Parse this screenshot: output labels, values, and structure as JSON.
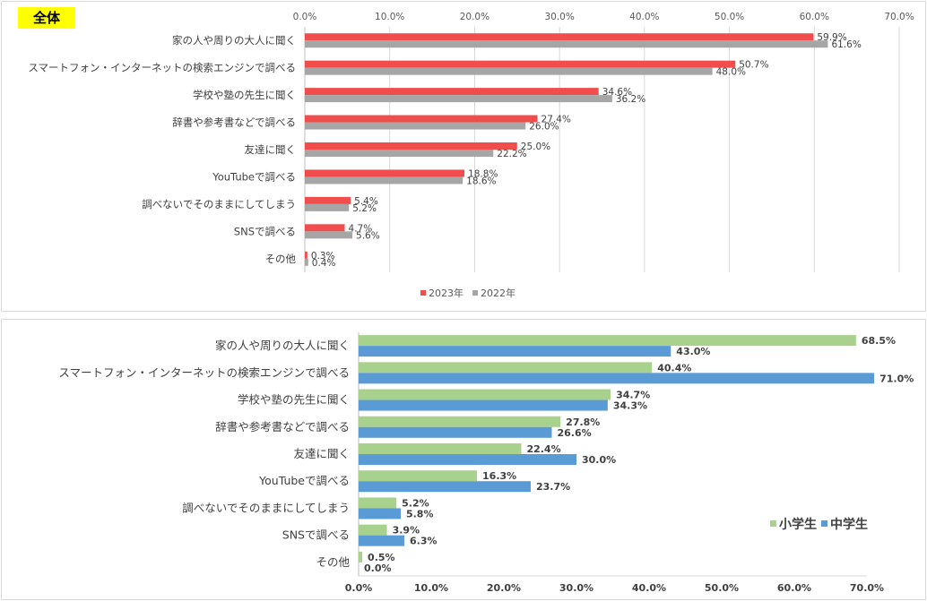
{
  "chart_data": [
    {
      "type": "bar",
      "orientation": "horizontal",
      "title": "",
      "badge": "全体",
      "categories": [
        "家の人や周りの大人に聞く",
        "スマートフォン・インターネットの検索エンジンで調べる",
        "学校や塾の先生に聞く",
        "辞書や参考書などで調べる",
        "友達に聞く",
        "YouTubeで調べる",
        "調べないでそのままにしてしまう",
        "SNSで調べる",
        "その他"
      ],
      "series": [
        {
          "name": "2023年",
          "color": "#f14d4d",
          "values": [
            59.9,
            50.7,
            34.6,
            27.4,
            25.0,
            18.8,
            5.4,
            4.7,
            0.3
          ],
          "labels": [
            "59.9%",
            "50.7%",
            "34.6%",
            "27.4%",
            "25.0%",
            "18.8%",
            "5.4%",
            "4.7%",
            "0.3%"
          ]
        },
        {
          "name": "2022年",
          "color": "#a6a6a6",
          "values": [
            61.6,
            48.0,
            36.2,
            26.0,
            22.2,
            18.6,
            5.2,
            5.6,
            0.4
          ],
          "labels": [
            "61.6%",
            "48.0%",
            "36.2%",
            "26.0%",
            "22.2%",
            "18.6%",
            "5.2%",
            "5.6%",
            "0.4%"
          ]
        }
      ],
      "ticks": [
        "0.0%",
        "10.0%",
        "20.0%",
        "30.0%",
        "40.0%",
        "50.0%",
        "60.0%",
        "70.0%"
      ],
      "xlim": [
        0,
        70
      ],
      "axis_position": "top",
      "grid": true,
      "legend_position": "bottom"
    },
    {
      "type": "bar",
      "orientation": "horizontal",
      "title": "",
      "categories": [
        "家の人や周りの大人に聞く",
        "スマートフォン・インターネットの検索エンジンで調べる",
        "学校や塾の先生に聞く",
        "辞書や参考書などで調べる",
        "友達に聞く",
        "YouTubeで調べる",
        "調べないでそのままにしてしまう",
        "SNSで調べる",
        "その他"
      ],
      "series": [
        {
          "name": "小学生",
          "color": "#a9d18e",
          "values": [
            68.5,
            40.4,
            34.7,
            27.8,
            22.4,
            16.3,
            5.2,
            3.9,
            0.5
          ],
          "labels": [
            "68.5%",
            "40.4%",
            "34.7%",
            "27.8%",
            "22.4%",
            "16.3%",
            "5.2%",
            "3.9%",
            "0.5%"
          ]
        },
        {
          "name": "中学生",
          "color": "#5b9bd5",
          "values": [
            43.0,
            71.0,
            34.3,
            26.6,
            30.0,
            23.7,
            5.8,
            6.3,
            0.0
          ],
          "labels": [
            "43.0%",
            "71.0%",
            "34.3%",
            "26.6%",
            "30.0%",
            "23.7%",
            "5.8%",
            "6.3%",
            "0.0%"
          ]
        }
      ],
      "ticks": [
        "0.0%",
        "10.0%",
        "20.0%",
        "30.0%",
        "40.0%",
        "50.0%",
        "60.0%",
        "70.0%"
      ],
      "xlim": [
        0,
        70
      ],
      "axis_position": "bottom",
      "grid": false,
      "legend_position": "right"
    }
  ]
}
